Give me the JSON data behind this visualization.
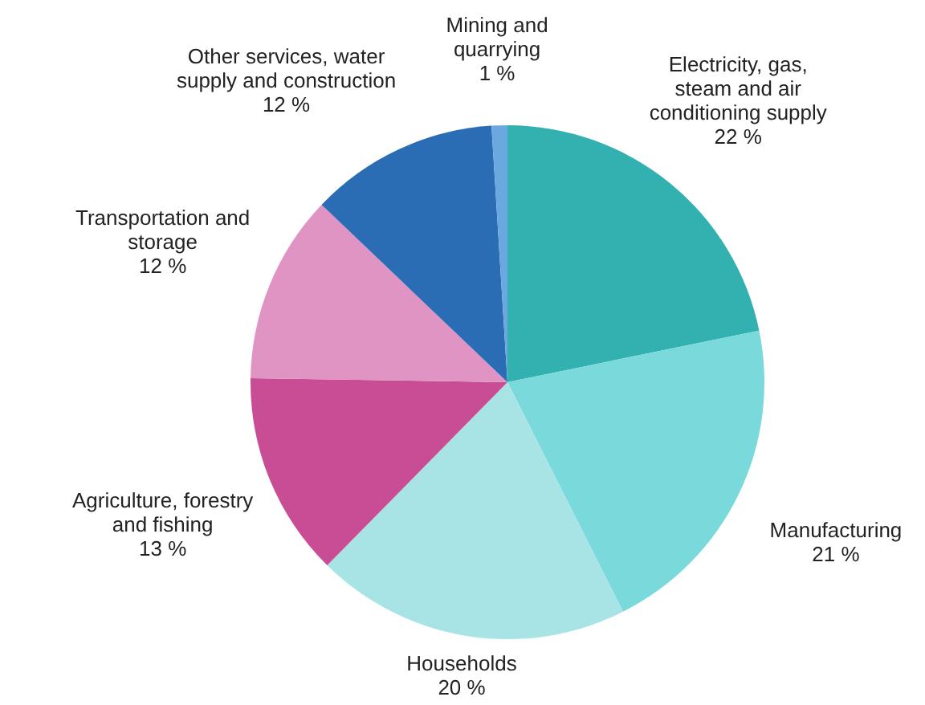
{
  "chart_data": {
    "type": "pie",
    "categories": [
      "Electricity, gas, steam and air conditioning supply",
      "Manufacturing",
      "Households",
      "Agriculture, forestry and fishing",
      "Transportation and storage",
      "Other services, water supply and construction",
      "Mining and quarrying"
    ],
    "values": [
      22,
      21,
      20,
      13,
      12,
      12,
      1
    ],
    "value_labels": [
      "22 %",
      "21 %",
      "20 %",
      "13 %",
      "12 %",
      "12 %",
      "1 %"
    ],
    "colors": [
      "#33b0b0",
      "#7ad9db",
      "#a8e4e6",
      "#c94d94",
      "#e094c4",
      "#2a6db5",
      "#6aa8e0"
    ]
  }
}
